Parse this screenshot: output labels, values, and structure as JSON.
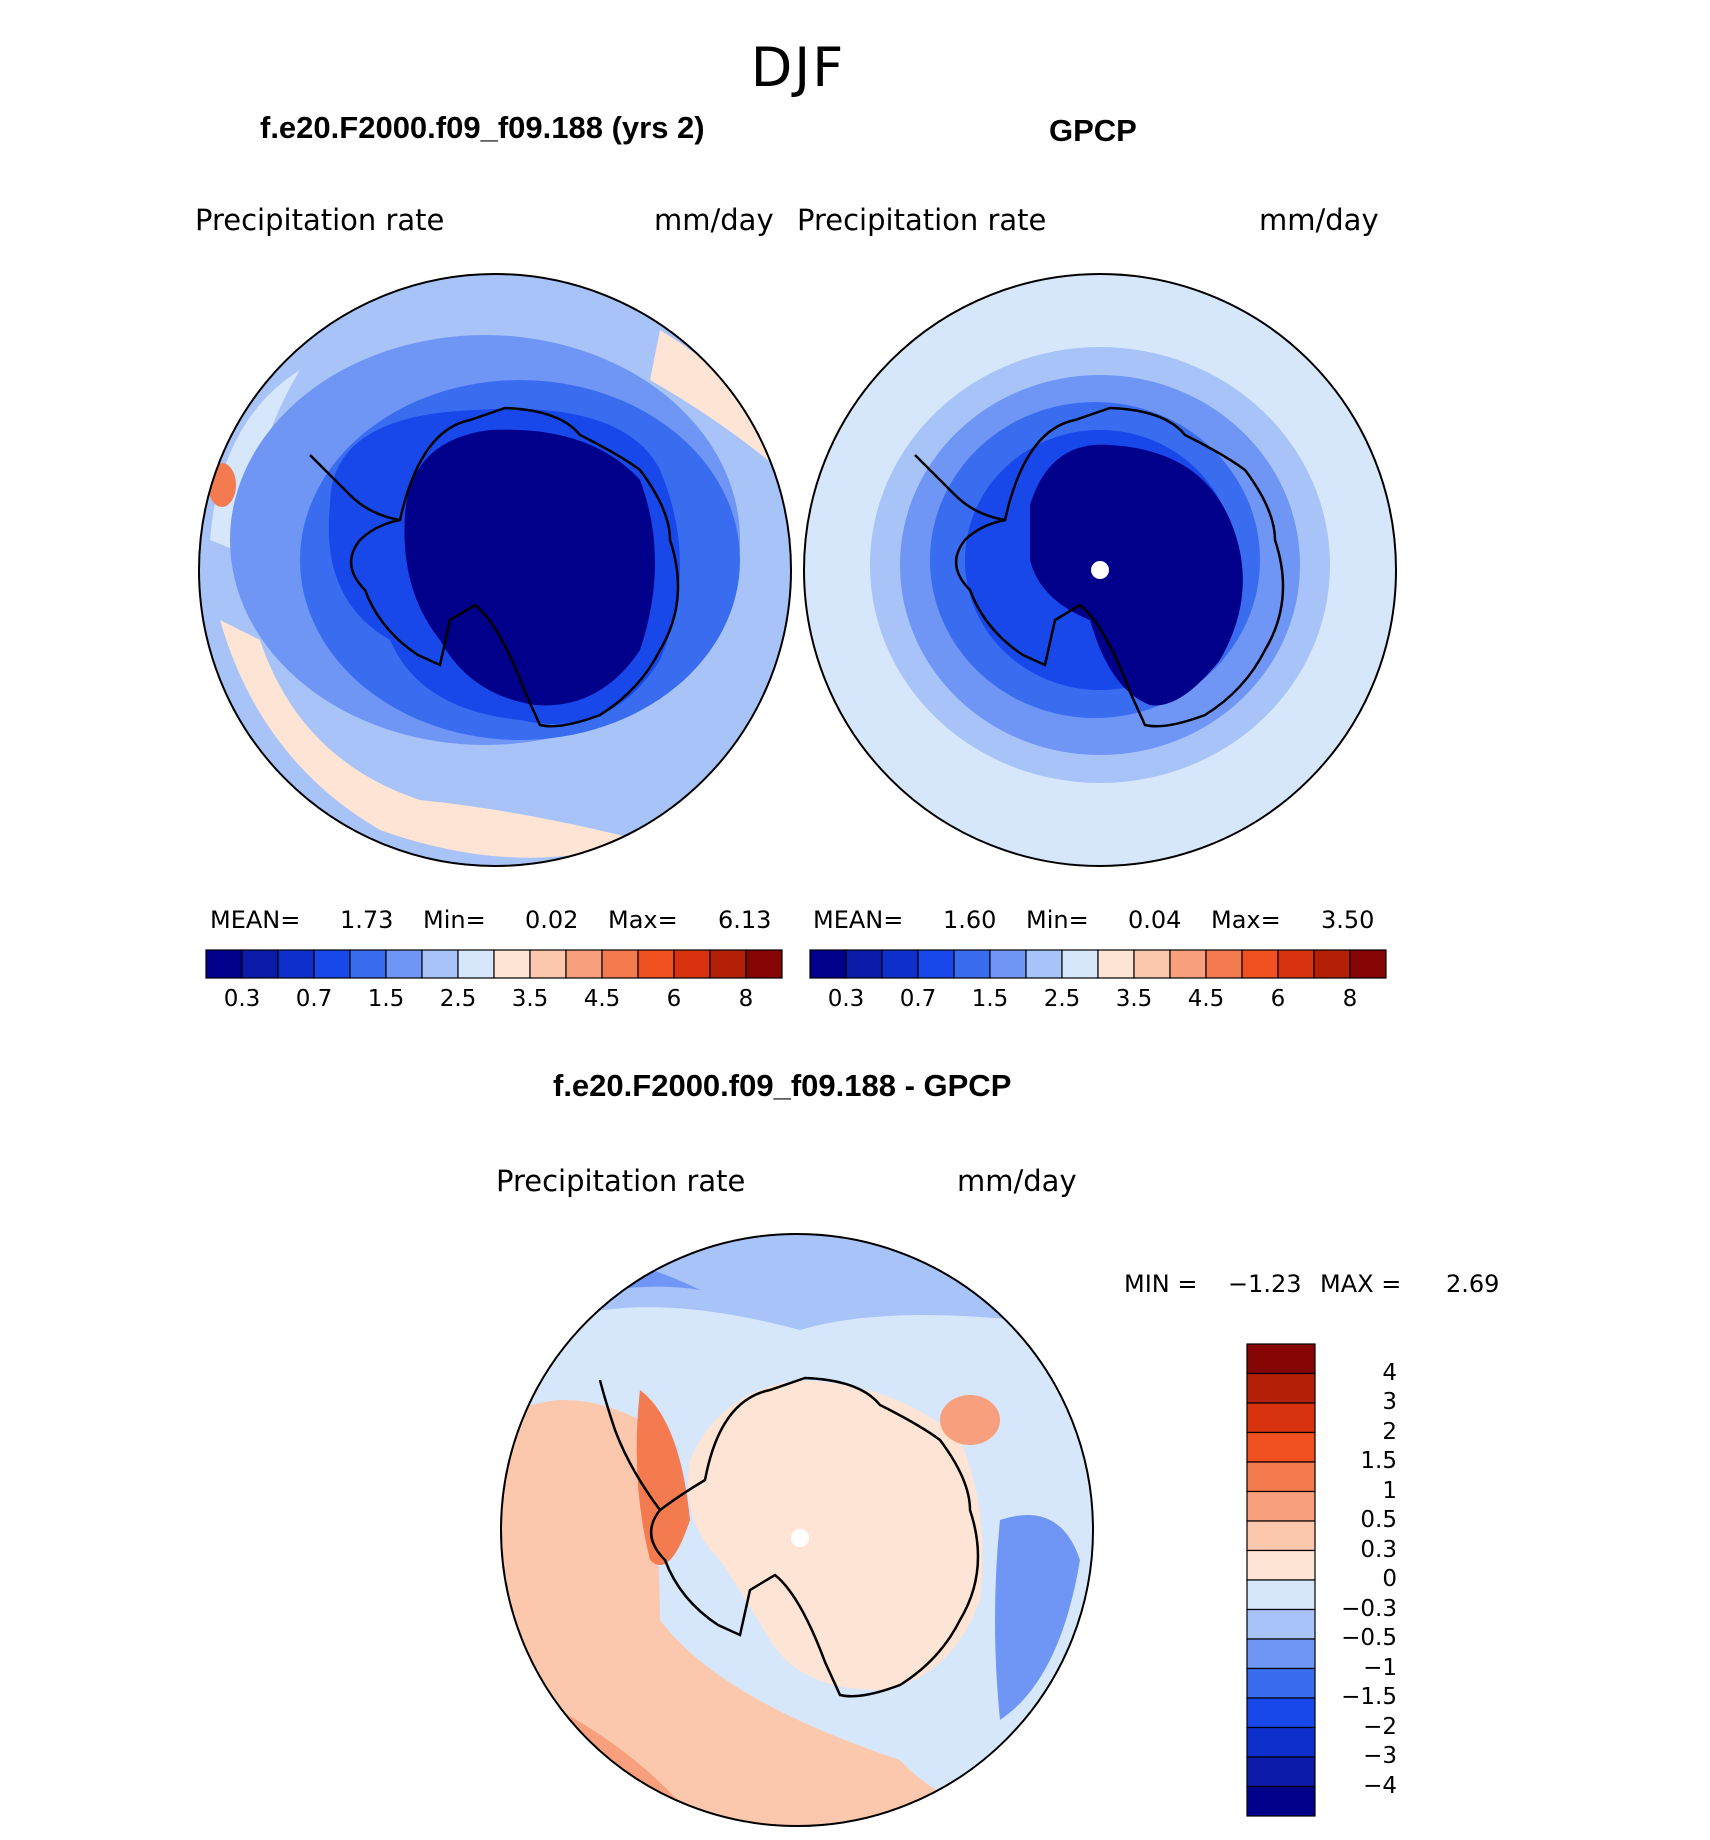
{
  "figure_title": "DJF",
  "panels": [
    {
      "title": "f.e20.F2000.f09_f09.188 (yrs 2)",
      "variable": "Precipitation rate",
      "units": "mm/day",
      "stats": {
        "mean_label": "MEAN=",
        "mean": "1.73",
        "min_label": "Min=",
        "min": "0.02",
        "max_label": "Max=",
        "max": "6.13"
      }
    },
    {
      "title": "GPCP",
      "variable": "Precipitation rate",
      "units": "mm/day",
      "stats": {
        "mean_label": "MEAN=",
        "mean": "1.60",
        "min_label": "Min=",
        "min": "0.04",
        "max_label": "Max=",
        "max": "3.50"
      }
    }
  ],
  "difference": {
    "title": "f.e20.F2000.f09_f09.188 - GPCP",
    "variable": "Precipitation rate",
    "units": "mm/day",
    "min_label": "MIN =",
    "min": "−1.23",
    "max_label": "MAX =",
    "max": "2.69"
  },
  "chart_data": [
    {
      "type": "heatmap",
      "projection": "south-polar-stereographic",
      "title": "f.e20.F2000.f09_f09.188 (yrs 2)",
      "variable": "Precipitation rate",
      "units": "mm/day",
      "levels": [
        0.2,
        0.3,
        0.5,
        0.7,
        1,
        1.5,
        2,
        2.5,
        3,
        3.5,
        4,
        4.5,
        5,
        6,
        7,
        8
      ],
      "colorbar_tick_labels": [
        "0.3",
        "0.7",
        "1.5",
        "2.5",
        "3.5",
        "4.5",
        "6",
        "8"
      ],
      "mean": 1.73,
      "min": 0.02,
      "max": 6.13
    },
    {
      "type": "heatmap",
      "projection": "south-polar-stereographic",
      "title": "GPCP",
      "variable": "Precipitation rate",
      "units": "mm/day",
      "levels": [
        0.2,
        0.3,
        0.5,
        0.7,
        1,
        1.5,
        2,
        2.5,
        3,
        3.5,
        4,
        4.5,
        5,
        6,
        7,
        8
      ],
      "colorbar_tick_labels": [
        "0.3",
        "0.7",
        "1.5",
        "2.5",
        "3.5",
        "4.5",
        "6",
        "8"
      ],
      "mean": 1.6,
      "min": 0.04,
      "max": 3.5
    },
    {
      "type": "heatmap",
      "projection": "south-polar-stereographic",
      "title": "f.e20.F2000.f09_f09.188 - GPCP",
      "variable": "Precipitation rate",
      "units": "mm/day",
      "diff_levels": [
        "4",
        "3",
        "2",
        "1.5",
        "1",
        "0.5",
        "0.3",
        "0",
        "−0.3",
        "−0.5",
        "−1",
        "−1.5",
        "−2",
        "−3",
        "−4"
      ],
      "min": -1.23,
      "max": 2.69
    }
  ],
  "colormap_abs": [
    "#00008b",
    "#0b1aa8",
    "#0f2fcc",
    "#1848ea",
    "#3a6cf0",
    "#6f96f5",
    "#a7c3f8",
    "#d7e7fb",
    "#fde4d4",
    "#fbc8ad",
    "#f8a07e",
    "#f47a50",
    "#f0501f",
    "#d9320f",
    "#b41f08",
    "#860505"
  ],
  "colormap_diff": [
    "#00008b",
    "#0b1aa8",
    "#0f2fcc",
    "#1848ea",
    "#3a6cf0",
    "#6f96f5",
    "#a7c3f8",
    "#d7e7fb",
    "#fde4d4",
    "#fbc8ad",
    "#f8a07e",
    "#f47a50",
    "#f0501f",
    "#d9320f",
    "#b41f08",
    "#860505"
  ]
}
